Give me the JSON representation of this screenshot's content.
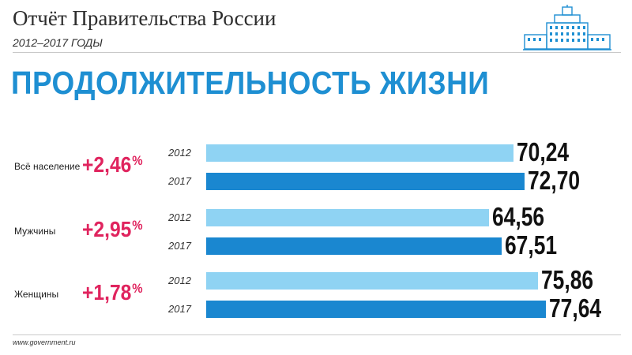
{
  "header": {
    "title": "Отчёт Правительства России",
    "subtitle": "2012–2017 ГОДЫ",
    "logo_icon": "government-building-icon"
  },
  "main_title": "ПРОДОЛЖИТЕЛЬНОСТЬ ЖИЗНИ",
  "colors": {
    "accent": "#1e8fd2",
    "bar_2012": "#8fd3f3",
    "bar_2017": "#1a87d0",
    "change": "#e0245e"
  },
  "chart_data": {
    "type": "bar",
    "orientation": "horizontal",
    "categories": [
      "Всё население",
      "Мужчины",
      "Женщины"
    ],
    "changes": [
      "+2,46",
      "+2,95",
      "+1,78"
    ],
    "change_unit": "%",
    "series": [
      {
        "name": "2012",
        "values": [
          70.24,
          64.56,
          75.86
        ],
        "labels": [
          "70,24",
          "64,56",
          "75,86"
        ]
      },
      {
        "name": "2017",
        "values": [
          72.7,
          67.51,
          77.64
        ],
        "labels": [
          "72,70",
          "67,51",
          "77,64"
        ]
      }
    ]
  },
  "footer": {
    "source": "www.government.ru"
  }
}
